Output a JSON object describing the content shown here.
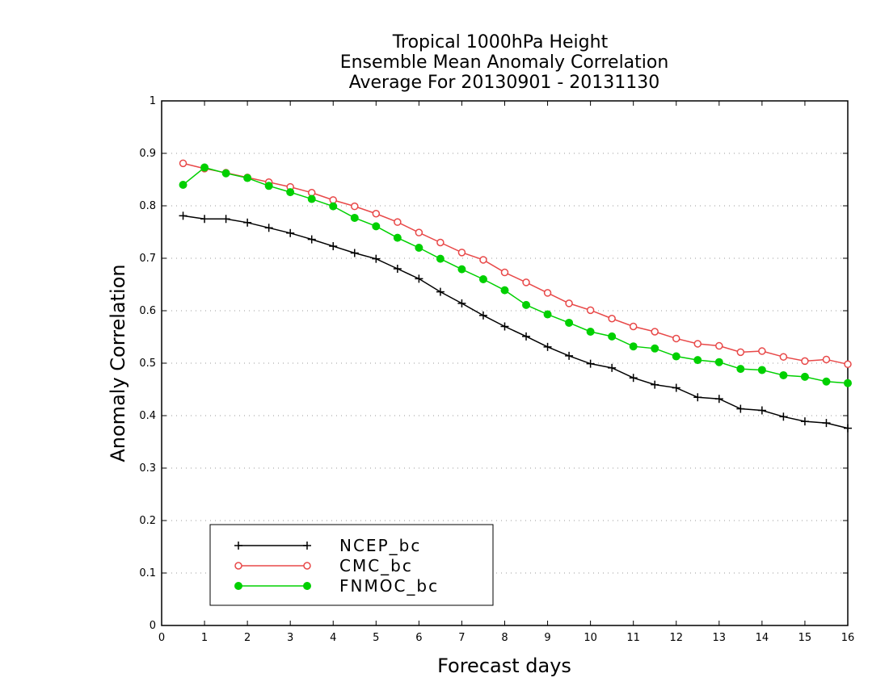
{
  "chart_data": {
    "type": "line",
    "title": [
      "Tropical 1000hPa Height",
      "Ensemble Mean Anomaly Correlation",
      "Average For 20130901 - 20131130"
    ],
    "xlabel": "Forecast days",
    "ylabel": "Anomaly Correlation",
    "xlim": [
      0,
      16
    ],
    "ylim": [
      0,
      1
    ],
    "xticks": [
      "0",
      "1",
      "2",
      "3",
      "4",
      "5",
      "6",
      "7",
      "8",
      "9",
      "10",
      "11",
      "12",
      "13",
      "14",
      "15",
      "16"
    ],
    "yticks": [
      "0",
      "0.1",
      "0.2",
      "0.3",
      "0.4",
      "0.5",
      "0.6",
      "0.7",
      "0.8",
      "0.9",
      "1"
    ],
    "grid": true,
    "legend_position": "bottom-left",
    "x": [
      0.5,
      1,
      1.5,
      2,
      2.5,
      3,
      3.5,
      4,
      4.5,
      5,
      5.5,
      6,
      6.5,
      7,
      7.5,
      8,
      8.5,
      9,
      9.5,
      10,
      10.5,
      11,
      11.5,
      12,
      12.5,
      13,
      13.5,
      14,
      14.5,
      15,
      15.5,
      16
    ],
    "series": [
      {
        "name": "NCEP_bc",
        "color": "#000000",
        "marker": "plus",
        "values": [
          0.781,
          0.775,
          0.775,
          0.768,
          0.758,
          0.748,
          0.736,
          0.723,
          0.71,
          0.699,
          0.68,
          0.661,
          0.636,
          0.614,
          0.591,
          0.57,
          0.551,
          0.531,
          0.514,
          0.499,
          0.491,
          0.472,
          0.459,
          0.453,
          0.435,
          0.432,
          0.413,
          0.41,
          0.398,
          0.389,
          0.386,
          0.376
        ]
      },
      {
        "name": "CMC_bc",
        "color": "#e84848",
        "marker": "open-circle",
        "values": [
          0.881,
          0.871,
          0.863,
          0.854,
          0.845,
          0.836,
          0.825,
          0.811,
          0.799,
          0.785,
          0.769,
          0.749,
          0.73,
          0.711,
          0.697,
          0.673,
          0.654,
          0.634,
          0.614,
          0.601,
          0.585,
          0.57,
          0.56,
          0.547,
          0.537,
          0.533,
          0.521,
          0.523,
          0.512,
          0.504,
          0.507,
          0.498
        ]
      },
      {
        "name": "FNMOC_bc",
        "color": "#00d000",
        "marker": "filled-circle",
        "values": [
          0.84,
          0.873,
          0.862,
          0.853,
          0.838,
          0.826,
          0.813,
          0.799,
          0.777,
          0.761,
          0.739,
          0.72,
          0.699,
          0.679,
          0.66,
          0.639,
          0.611,
          0.593,
          0.577,
          0.56,
          0.551,
          0.532,
          0.528,
          0.513,
          0.506,
          0.502,
          0.489,
          0.487,
          0.477,
          0.474,
          0.465,
          0.462
        ]
      }
    ]
  }
}
